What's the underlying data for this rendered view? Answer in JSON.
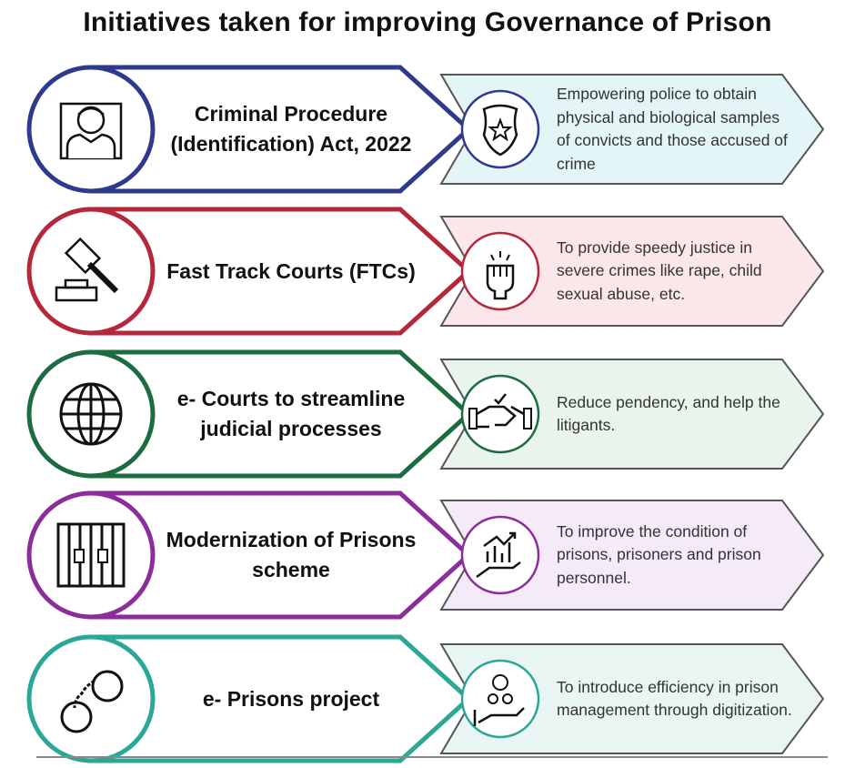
{
  "title": "Initiatives taken for improving Governance of Prison",
  "rows": [
    {
      "title": "Criminal Procedure (Identification) Act, 2022",
      "description": "Empowering police to obtain physical and biological samples of convicts and those accused of crime",
      "color": "#2f3a8f",
      "fill": "#e4f5f8",
      "left_icon": "person-portrait-icon",
      "right_icon": "police-badge-star-icon"
    },
    {
      "title": "Fast Track Courts (FTCs)",
      "description": "To provide speedy justice in severe crimes like rape, child sexual abuse, etc.",
      "color": "#b5283b",
      "fill": "#fbe7ea",
      "left_icon": "gavel-icon",
      "right_icon": "raised-fist-icon"
    },
    {
      "title": "e- Courts to streamline judicial processes",
      "description": "Reduce pendency, and help the litigants.",
      "color": "#1d6b41",
      "fill": "#e9f5ea",
      "left_icon": "globe-icon",
      "right_icon": "handshake-icon"
    },
    {
      "title": "Modernization of Prisons scheme",
      "description": "To improve the condition of prisons, prisoners and prison personnel.",
      "color": "#8b2e9c",
      "fill": "#f5eaf7",
      "left_icon": "prison-bars-icon",
      "right_icon": "growth-chart-hand-icon"
    },
    {
      "title": "e- Prisons project",
      "description": "To introduce efficiency in prison management through digitization.",
      "color": "#2aa796",
      "fill": "#e8f5f3",
      "left_icon": "handcuffs-icon",
      "right_icon": "people-gear-hand-icon"
    }
  ]
}
